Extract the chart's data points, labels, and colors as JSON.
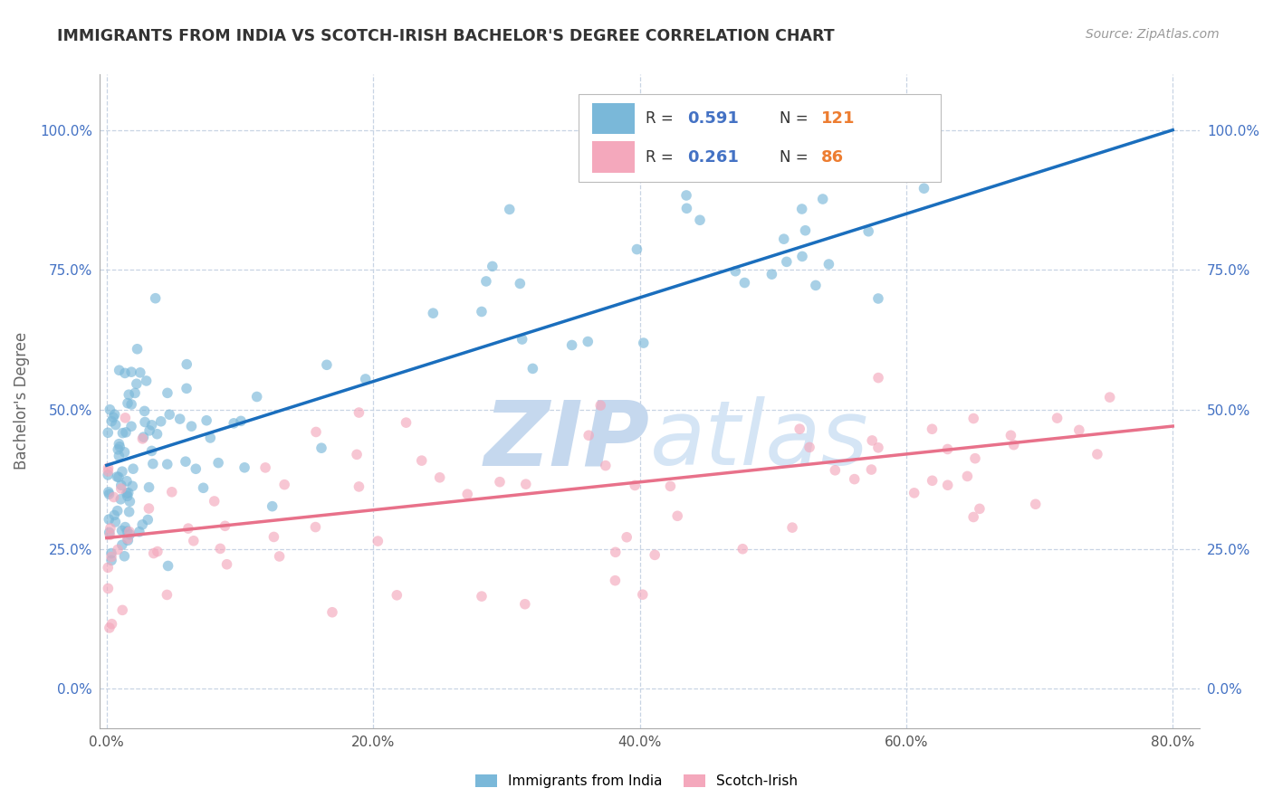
{
  "title": "IMMIGRANTS FROM INDIA VS SCOTCH-IRISH BACHELOR'S DEGREE CORRELATION CHART",
  "source": "Source: ZipAtlas.com",
  "x_tick_vals": [
    0.0,
    0.2,
    0.4,
    0.6,
    0.8
  ],
  "y_tick_vals": [
    0.0,
    0.25,
    0.5,
    0.75,
    1.0
  ],
  "x_tick_labels": [
    "0.0%",
    "20.0%",
    "40.0%",
    "60.0%",
    "80.0%"
  ],
  "y_tick_labels": [
    "0.0%",
    "25.0%",
    "50.0%",
    "75.0%",
    "100.0%"
  ],
  "xlim": [
    -0.005,
    0.82
  ],
  "ylim": [
    -0.07,
    1.1
  ],
  "blue_r": 0.591,
  "blue_n": 121,
  "pink_r": 0.261,
  "pink_n": 86,
  "blue_scatter_color": "#7ab8d9",
  "pink_scatter_color": "#f4a8bc",
  "blue_line_color": "#1a6ebd",
  "pink_line_color": "#e8718a",
  "blue_intercept": 0.4,
  "blue_slope": 0.75,
  "pink_intercept": 0.27,
  "pink_slope": 0.25,
  "watermark_zip_color": "#c8d8ee",
  "watermark_atlas_color": "#d8e8f4",
  "background_color": "#ffffff",
  "grid_color": "#c8d4e4",
  "title_color": "#333333",
  "source_color": "#999999",
  "tick_color": "#4472c4",
  "ylabel": "Bachelor's Degree",
  "blue_label": "Immigrants from India",
  "pink_label": "Scotch-Irish",
  "legend_r_color": "#4472c4",
  "legend_n_color": "#ed7d31"
}
